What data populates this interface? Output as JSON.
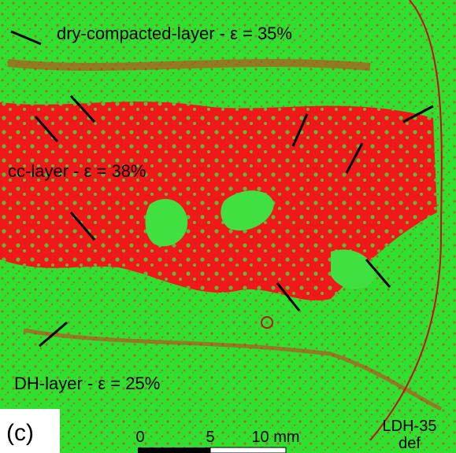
{
  "labels": {
    "top_layer": "dry-compacted-layer - ε = 35%",
    "middle_layer": "cc-layer - ε = 38%",
    "bottom_layer": "DH-layer - ε = 25%"
  },
  "panel": "(c)",
  "scale_bar": {
    "ticks": [
      "0",
      "5",
      "10 mm"
    ]
  },
  "sample": [
    "LDH-35",
    "def"
  ]
}
